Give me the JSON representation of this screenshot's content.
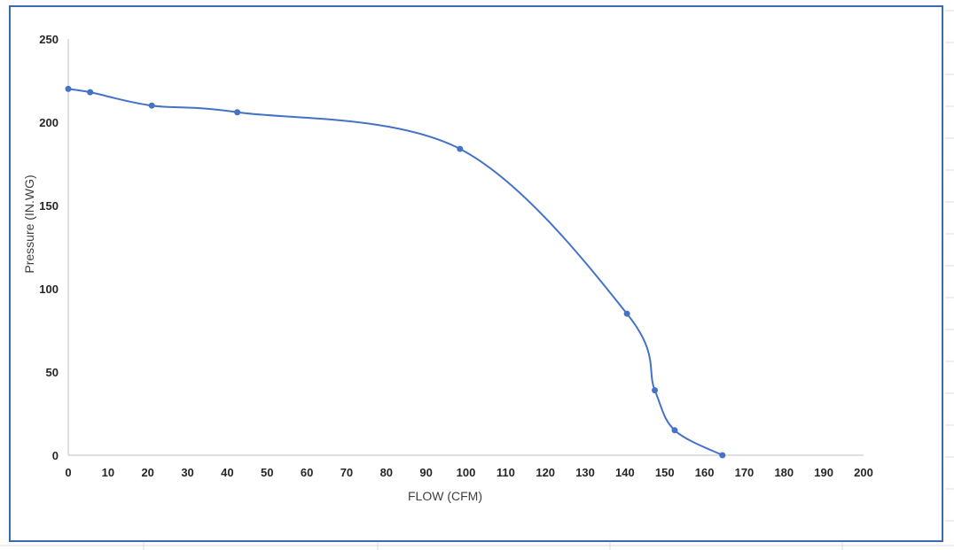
{
  "chart_data": {
    "type": "line",
    "title": "",
    "xlabel": "FLOW (CFM)",
    "ylabel": "Pressure (IN.WG)",
    "xlim": [
      0,
      200
    ],
    "ylim": [
      0,
      250
    ],
    "x_ticks": [
      "0",
      "10",
      "20",
      "30",
      "40",
      "50",
      "60",
      "70",
      "80",
      "90",
      "100",
      "110",
      "120",
      "130",
      "140",
      "150",
      "160",
      "170",
      "180",
      "190",
      "200"
    ],
    "y_ticks": [
      "0",
      "50",
      "100",
      "150",
      "200",
      "250"
    ],
    "grid": false,
    "legend": "none",
    "line_color": "#4472c4",
    "series": [
      {
        "x": [
          0,
          5.5,
          21,
          42.5,
          98.5,
          140.5,
          147.5,
          152.5,
          164.5
        ],
        "y": [
          220,
          218,
          210,
          206,
          184,
          85,
          39,
          15,
          0
        ]
      }
    ]
  }
}
